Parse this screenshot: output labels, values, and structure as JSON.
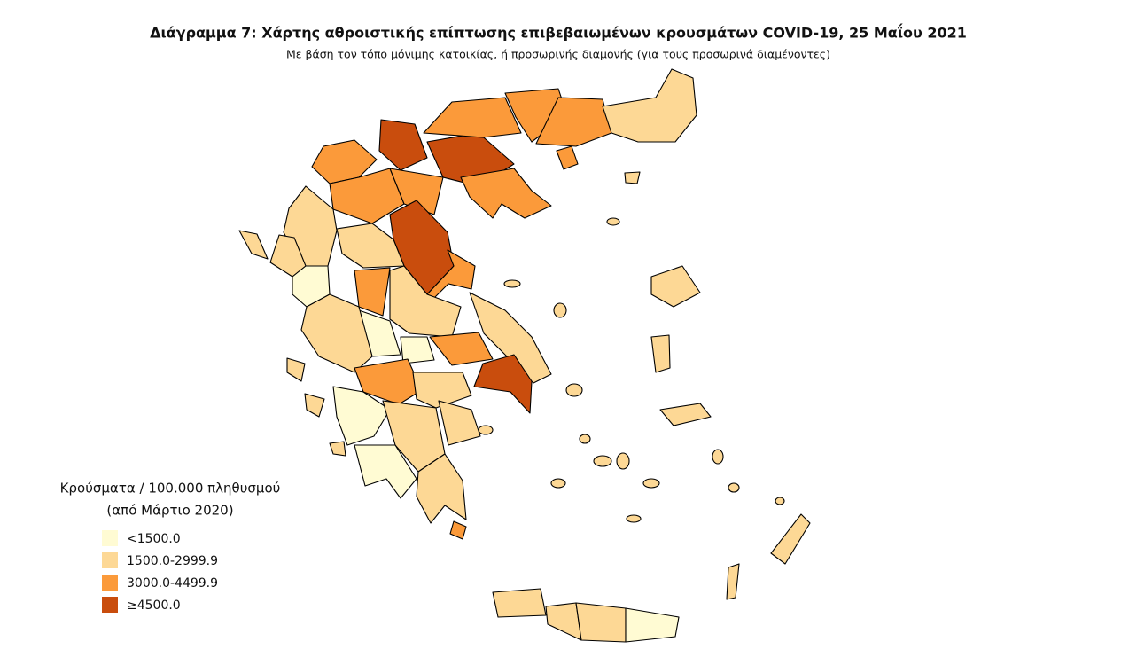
{
  "title": "Διάγραμμα 7: Χάρτης αθροιστικής επίπτωσης επιβεβαιωμένων κρουσμάτων COVID-19, 25 Μαΐου 2021",
  "subtitle": "Με βάση τον τόπο μόνιμης κατοικίας, ή προσωρινής διαμονής (για τους προσωρινά διαμένοντες)",
  "legend": {
    "title": [
      "Κρούσματα / 100.000 πληθυσμού",
      "(από Μάρτιο 2020)"
    ],
    "items": [
      {
        "label": "<1500.0",
        "color": "#fffbd3"
      },
      {
        "label": "1500.0-2999.9",
        "color": "#fdd895"
      },
      {
        "label": "3000.0-4499.9",
        "color": "#fb9a3a"
      },
      {
        "label": "≥4500.0",
        "color": "#c94d0d"
      }
    ]
  }
}
